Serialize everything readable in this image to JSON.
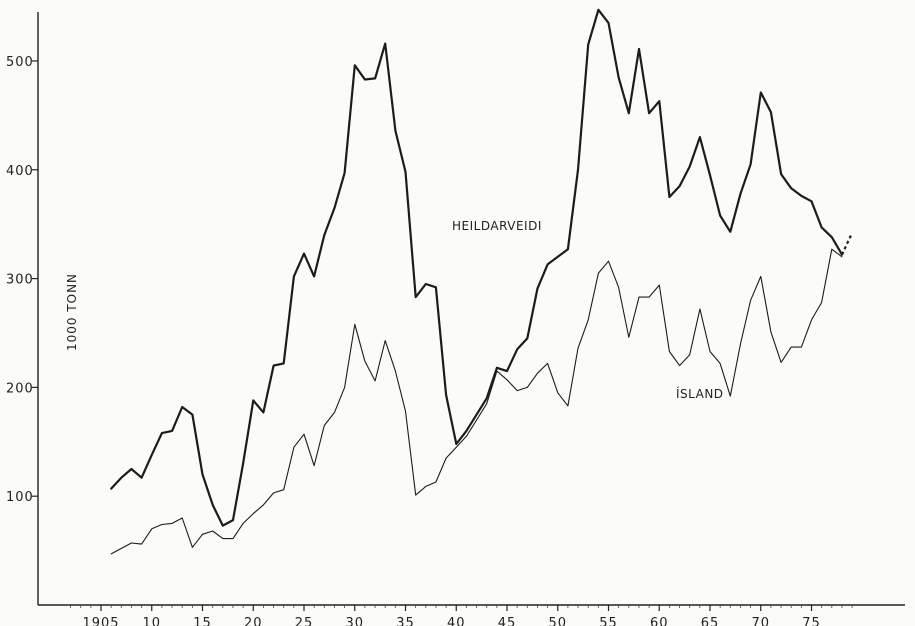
{
  "chart_data": {
    "type": "line",
    "ylabel": "1000 TONN",
    "ylim": [
      0,
      550
    ],
    "xlim": [
      1901,
      1980
    ],
    "y_ticks": [
      100,
      200,
      300,
      400,
      500
    ],
    "x_ticks": [
      1905,
      1910,
      1915,
      1920,
      1925,
      1930,
      1935,
      1940,
      1945,
      1950,
      1955,
      1960,
      1965,
      1970,
      1975
    ],
    "x_tick_labels": [
      "1905",
      "10",
      "15",
      "20",
      "25",
      "30",
      "35",
      "40",
      "45",
      "50",
      "55",
      "60",
      "65",
      "70",
      "75"
    ],
    "grid": false,
    "series": [
      {
        "name": "HEILDARVEIDI",
        "stroke_width": 2.2,
        "x": [
          1906,
          1907,
          1908,
          1909,
          1910,
          1911,
          1912,
          1913,
          1914,
          1915,
          1916,
          1917,
          1918,
          1919,
          1920,
          1921,
          1922,
          1923,
          1924,
          1925,
          1926,
          1927,
          1928,
          1929,
          1930,
          1931,
          1932,
          1933,
          1934,
          1935,
          1936,
          1937,
          1938,
          1939,
          1940,
          1941,
          1942,
          1943,
          1944,
          1945,
          1946,
          1947,
          1948,
          1949,
          1950,
          1951,
          1952,
          1953,
          1954,
          1955,
          1956,
          1957,
          1958,
          1959,
          1960,
          1961,
          1962,
          1963,
          1964,
          1965,
          1966,
          1967,
          1968,
          1969,
          1970,
          1971,
          1972,
          1973,
          1974,
          1975,
          1976,
          1977,
          1978
        ],
        "values": [
          107,
          117,
          125,
          117,
          138,
          158,
          160,
          182,
          175,
          120,
          92,
          73,
          78,
          130,
          188,
          177,
          220,
          222,
          302,
          323,
          302,
          340,
          365,
          397,
          496,
          483,
          484,
          516,
          436,
          398,
          283,
          295,
          292,
          193,
          148,
          160,
          175,
          190,
          218,
          215,
          235,
          245,
          291,
          313,
          320,
          327,
          400,
          515,
          547,
          535,
          485,
          452,
          511,
          452,
          463,
          375,
          385,
          403,
          430,
          395,
          358,
          343,
          378,
          405,
          471,
          453,
          396,
          383,
          376,
          371,
          347,
          338,
          322
        ],
        "extension": {
          "x": [
            1978,
            1979
          ],
          "values": [
            322,
            342
          ]
        }
      },
      {
        "name": "ÍSLAND",
        "stroke_width": 1.1,
        "x": [
          1906,
          1907,
          1908,
          1909,
          1910,
          1911,
          1912,
          1913,
          1914,
          1915,
          1916,
          1917,
          1918,
          1919,
          1920,
          1921,
          1922,
          1923,
          1924,
          1925,
          1926,
          1927,
          1928,
          1929,
          1930,
          1931,
          1932,
          1933,
          1934,
          1935,
          1936,
          1937,
          1938,
          1939,
          1940,
          1941,
          1942,
          1943,
          1944,
          1945,
          1946,
          1947,
          1948,
          1949,
          1950,
          1951,
          1952,
          1953,
          1954,
          1955,
          1956,
          1957,
          1958,
          1959,
          1960,
          1961,
          1962,
          1963,
          1964,
          1965,
          1966,
          1967,
          1968,
          1969,
          1970,
          1971,
          1972,
          1973,
          1974,
          1975,
          1976,
          1977,
          1978
        ],
        "values": [
          47,
          52,
          57,
          56,
          70,
          74,
          75,
          80,
          53,
          65,
          68,
          61,
          61,
          75,
          84,
          92,
          103,
          106,
          145,
          157,
          128,
          165,
          177,
          200,
          258,
          224,
          206,
          243,
          215,
          178,
          101,
          109,
          113,
          135,
          145,
          155,
          170,
          185,
          215,
          207,
          197,
          200,
          213,
          222,
          195,
          183,
          236,
          262,
          305,
          316,
          292,
          246,
          283,
          283,
          294,
          233,
          220,
          230,
          272,
          233,
          222,
          192,
          240,
          280,
          302,
          251,
          223,
          237,
          237,
          262,
          278,
          327,
          320
        ]
      }
    ]
  }
}
